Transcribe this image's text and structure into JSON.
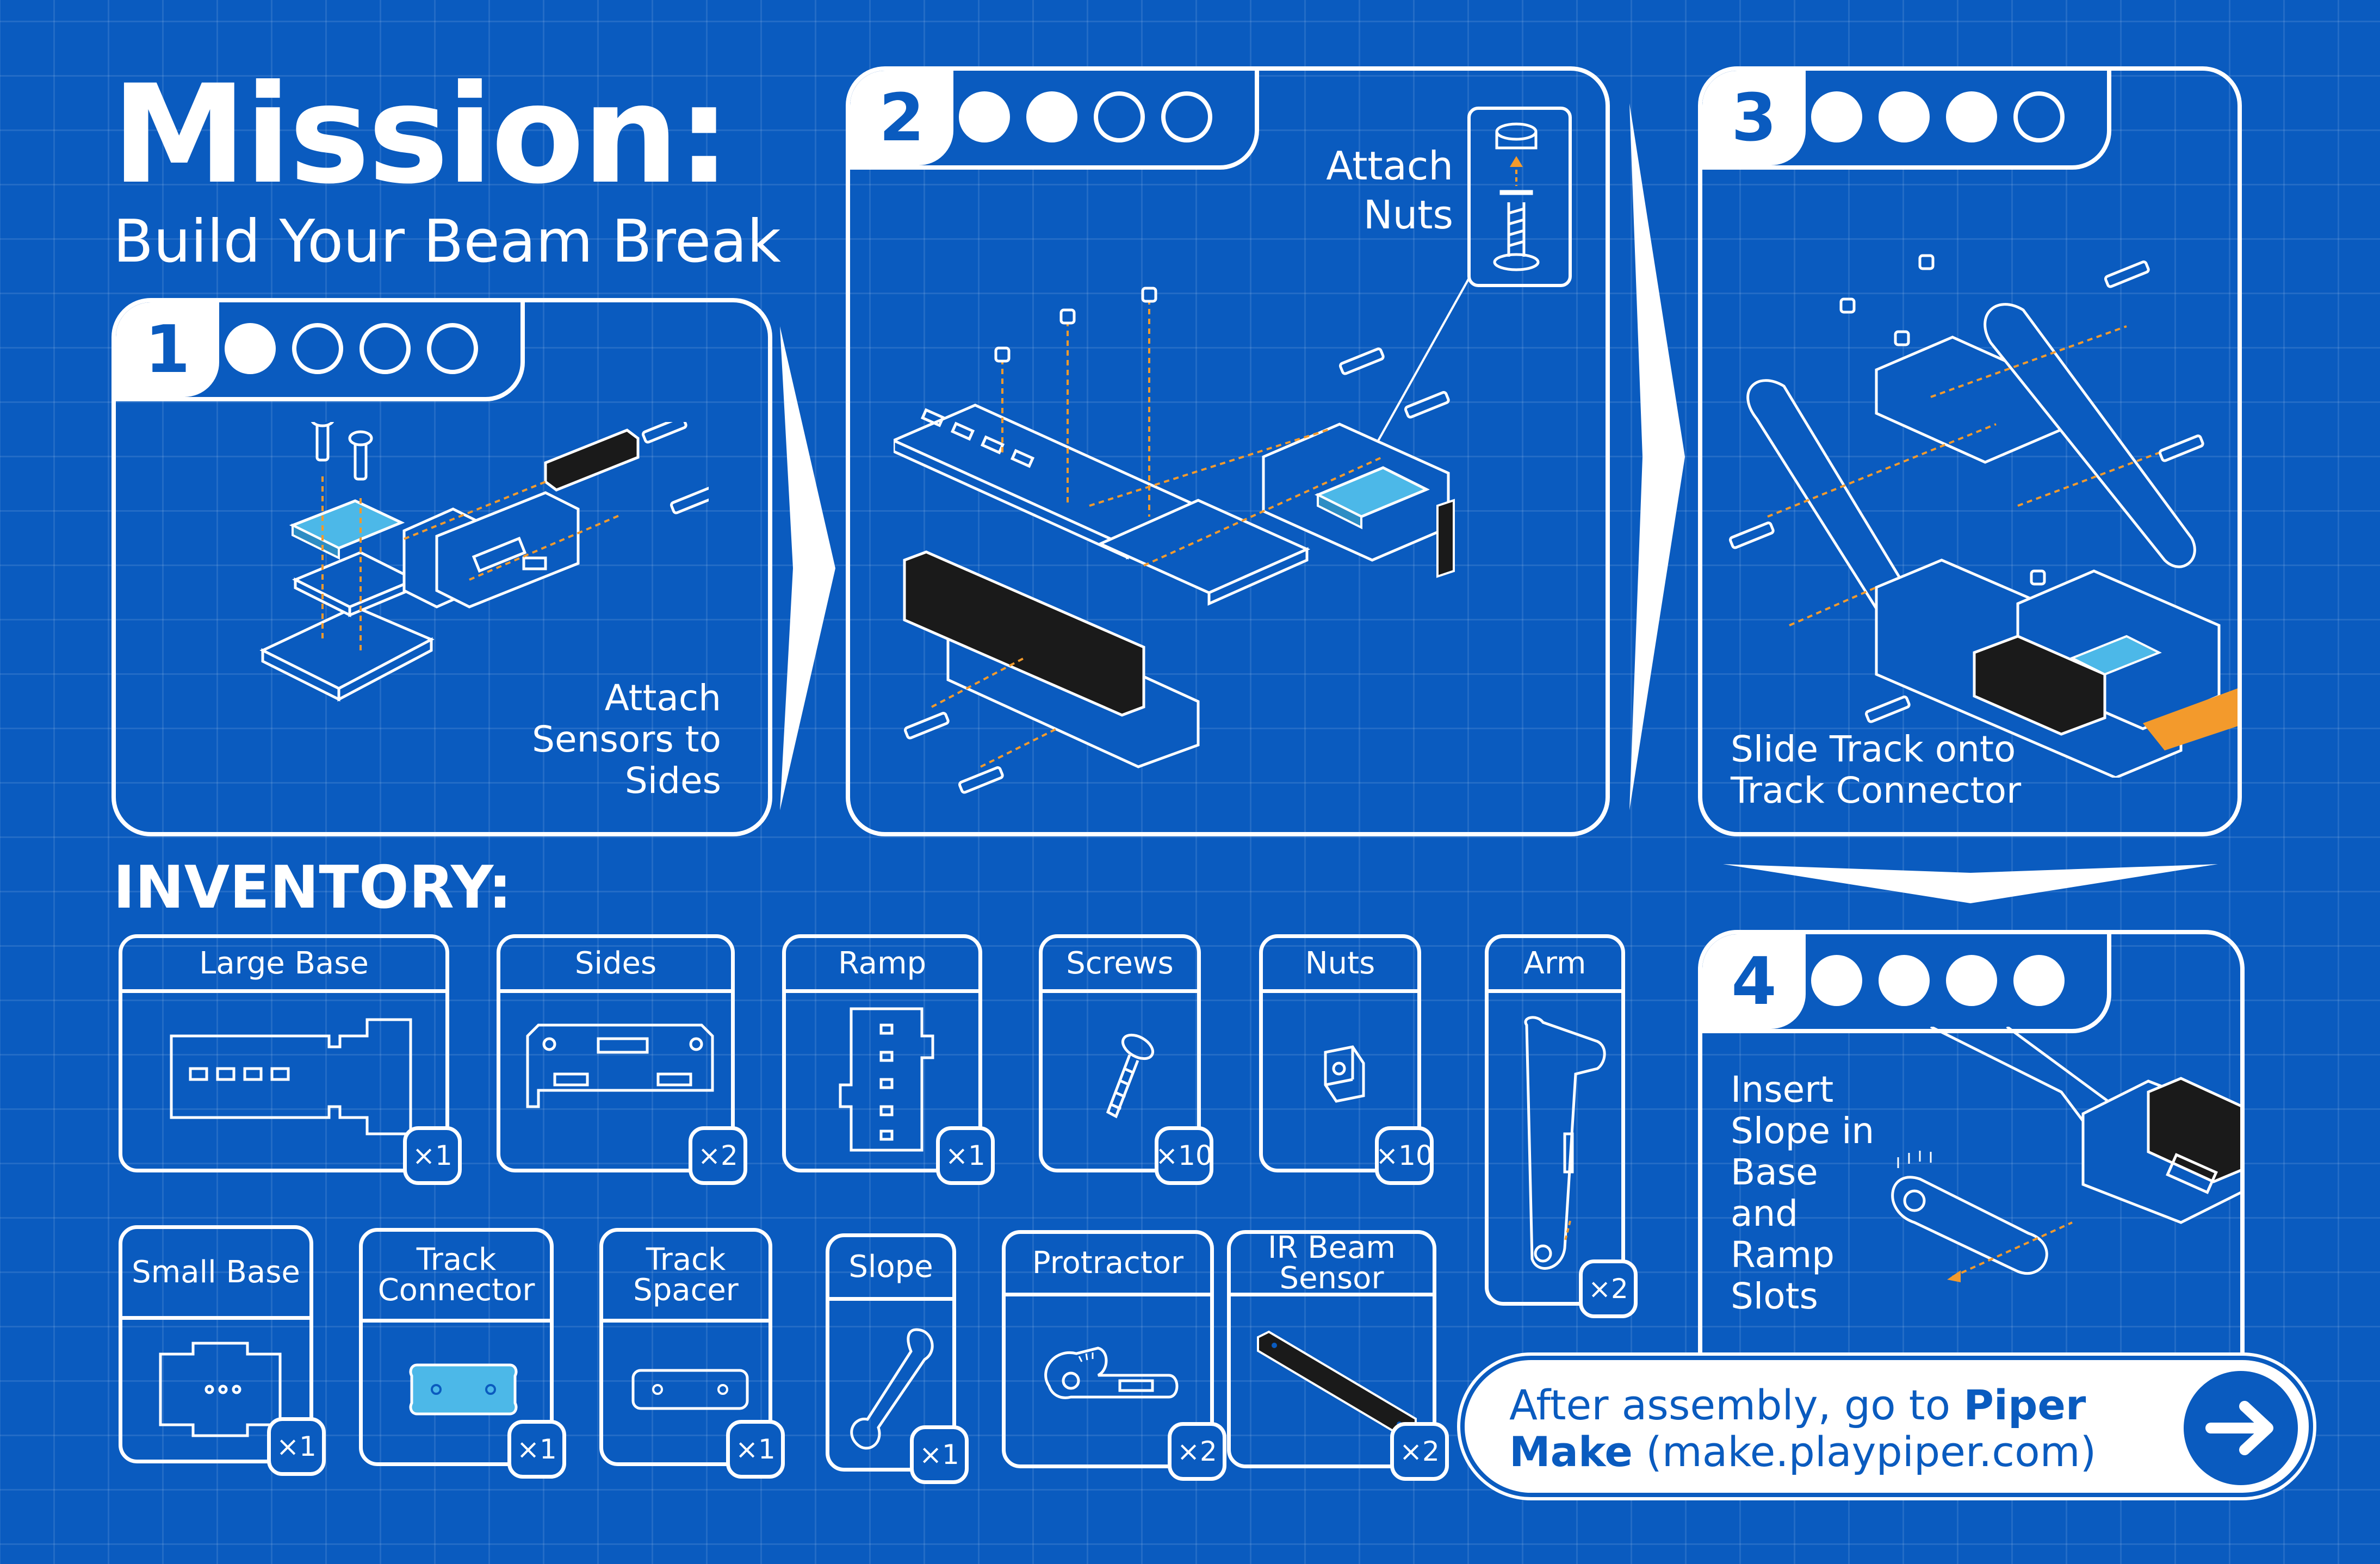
{
  "title": {
    "main": "Mission:",
    "subtitle": "Build Your Beam Break"
  },
  "steps": [
    {
      "number": "1",
      "filled": 1,
      "total": 4,
      "text": [
        "Attach",
        "Sensors to",
        "Sides"
      ]
    },
    {
      "number": "2",
      "filled": 2,
      "total": 4,
      "text": [
        "Attach",
        "Nuts"
      ]
    },
    {
      "number": "3",
      "filled": 3,
      "total": 4,
      "text": [
        "Slide Track onto",
        "Track Connector"
      ]
    },
    {
      "number": "4",
      "filled": 4,
      "total": 4,
      "text": [
        "Insert",
        "Slope in",
        "Base",
        "and",
        "Ramp",
        "Slots"
      ]
    }
  ],
  "inventory": {
    "heading": "INVENTORY:",
    "items": [
      {
        "name": "Large Base",
        "qty": "×1"
      },
      {
        "name": "Sides",
        "qty": "×2"
      },
      {
        "name": "Ramp",
        "qty": "×1"
      },
      {
        "name": "Screws",
        "qty": "×10"
      },
      {
        "name": "Nuts",
        "qty": "×10"
      },
      {
        "name": "Arm",
        "qty": "×2"
      },
      {
        "name": "Small Base",
        "qty": "×1"
      },
      {
        "name": "Track Connector",
        "qty": "×1"
      },
      {
        "name": "Track Spacer",
        "qty": "×1"
      },
      {
        "name": "Slope",
        "qty": "×1"
      },
      {
        "name": "Protractor",
        "qty": "×2"
      },
      {
        "name": "IR Beam Sensor",
        "qty": "×2"
      }
    ]
  },
  "cta": {
    "prefix": "After assembly, go to ",
    "brand1": "Piper",
    "brand2": "Make",
    "url": " (make.playpiper.com)",
    "button_icon": "arrow-right-icon"
  },
  "colors": {
    "background": "#0a5bbf",
    "white": "#ffffff",
    "part_blue": "#4cb8e8",
    "accent_orange": "#f39a2c",
    "sensor_black": "#1a1a1a"
  }
}
